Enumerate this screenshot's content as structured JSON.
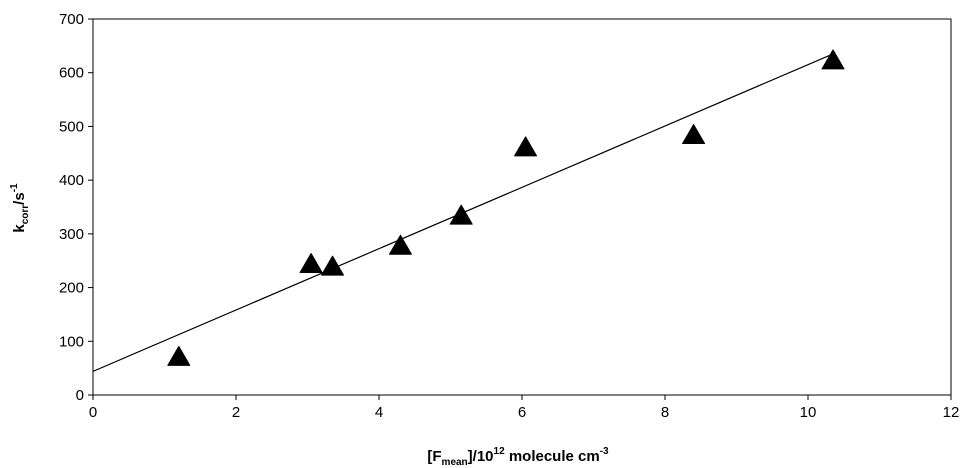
{
  "chart_data": {
    "type": "scatter",
    "title": "",
    "xlabel": {
      "main": "[F",
      "sub": "mean",
      "mid": "]/10",
      "sup": "12",
      "tail": " molecule cm",
      "sup2": "-3"
    },
    "ylabel": {
      "main": "k",
      "sub": "corr",
      "mid": "/s",
      "sup": "-1"
    },
    "xlim": [
      0,
      12
    ],
    "ylim": [
      0,
      700
    ],
    "xticks": [
      0,
      2,
      4,
      6,
      8,
      10,
      12
    ],
    "yticks": [
      0,
      100,
      200,
      300,
      400,
      500,
      600,
      700
    ],
    "grid": false,
    "legend": "none",
    "marker": "triangle",
    "marker_color": "#000000",
    "series": [
      {
        "x": [
          1.2,
          3.05,
          3.35,
          4.3,
          5.15,
          6.05,
          8.4,
          10.35
        ],
        "y": [
          70,
          243,
          238,
          277,
          333,
          460,
          483,
          622
        ]
      }
    ],
    "fit_line": {
      "intercept": 44,
      "slope": 57.1,
      "x_range": [
        0,
        10.35
      ]
    }
  }
}
